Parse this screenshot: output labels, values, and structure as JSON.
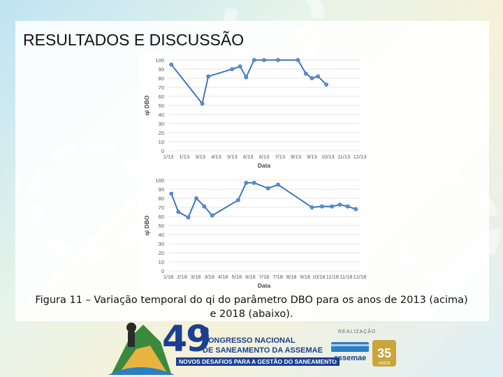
{
  "slide": {
    "title": "RESULTADOS E DISCUSSÃO",
    "caption_line1": "Figura 11 – Variação temporal do qi do parâmetro DBO para os anos de 2013 (acima)",
    "caption_line2": "e 2018 (abaixo)."
  },
  "footer": {
    "event_number": "49",
    "event_degree": "o",
    "event_line1": "CONGRESSO NACIONAL",
    "event_line2": "DE SANEAMENTO DA ASSEMAE",
    "event_line3": "NOVOS DESAFIOS PARA A GESTÃO DO SANEAMENTO",
    "realizacao_label": "REALIZAÇÃO",
    "org_name": "assemae",
    "anniversary": "35",
    "anniversary_label": "ANOS"
  },
  "colors": {
    "line": "#2e6cb5",
    "marker": "#5b8fd6",
    "axis_text": "#555555",
    "title": "#111111"
  },
  "chart_data": [
    {
      "type": "line",
      "xlabel": "Data",
      "ylabel": "qi DBO",
      "ylim": [
        0,
        100
      ],
      "yticks": [
        "0",
        "10",
        "20",
        "30",
        "40",
        "50",
        "60",
        "70",
        "80",
        "90",
        "100"
      ],
      "xticks": [
        "1/13",
        "1/13",
        "3/13",
        "4/13",
        "5/13",
        "6/13",
        "6/13",
        "7/13",
        "8/13",
        "9/13",
        "10/13",
        "11/13",
        "12/13"
      ],
      "x": [
        0.15,
        1.7,
        2.0,
        3.2,
        3.6,
        3.9,
        4.3,
        4.8,
        5.5,
        6.5,
        6.9,
        7.2,
        7.5
      ],
      "values": [
        95,
        52,
        82,
        90,
        93,
        81,
        100,
        100,
        100,
        100,
        85,
        80,
        82
      ],
      "values_tail": [
        73
      ]
    },
    {
      "type": "line",
      "xlabel": "Data",
      "ylabel": "qi DBO",
      "ylim": [
        0,
        100
      ],
      "yticks": [
        "0",
        "10",
        "20",
        "30",
        "40",
        "50",
        "60",
        "70",
        "80",
        "90",
        "100"
      ],
      "xticks": [
        "1/18",
        "2/18",
        "3/18",
        "3/18",
        "4/18",
        "5/18",
        "6/18",
        "7/18",
        "7/18",
        "8/18",
        "9/18",
        "10/18",
        "11/18",
        "11/18",
        "12/18"
      ],
      "x": [
        0.15,
        0.5,
        1.0,
        1.4,
        1.8,
        2.2,
        3.5,
        3.9,
        4.3,
        5.0,
        5.5,
        7.2,
        7.7,
        8.2,
        8.6,
        9.0,
        9.4
      ],
      "values": [
        85,
        65,
        59,
        80,
        71,
        61,
        78,
        97,
        97,
        91,
        95,
        70,
        71,
        71,
        73,
        71,
        68
      ]
    }
  ]
}
